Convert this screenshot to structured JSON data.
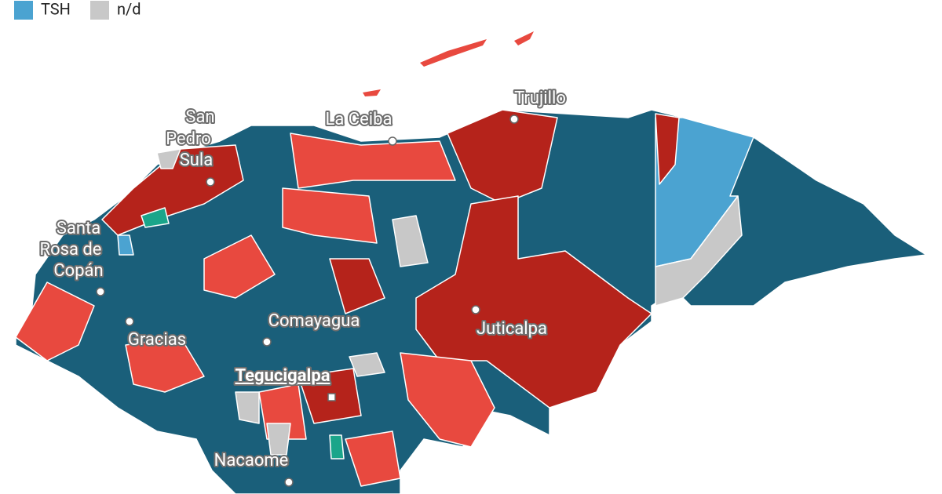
{
  "legend": {
    "items": [
      {
        "label": "TSH",
        "color": "#4ba3d1"
      },
      {
        "label": "n/d",
        "color": "#c8c8c8"
      }
    ]
  },
  "cities": [
    {
      "lines": [
        "San",
        "Pedro",
        "Sula"
      ]
    },
    {
      "lines": [
        "Santa",
        "Rosa de",
        "Copán"
      ]
    },
    {
      "lines": [
        "La Ceiba"
      ]
    },
    {
      "lines": [
        "Trujillo"
      ]
    },
    {
      "lines": [
        "Juticalpa"
      ]
    },
    {
      "lines": [
        "Comayagua"
      ]
    },
    {
      "lines": [
        "Gracias"
      ]
    },
    {
      "lines": [
        "Tegucigalpa"
      ]
    },
    {
      "lines": [
        "Nacaome"
      ]
    }
  ]
}
